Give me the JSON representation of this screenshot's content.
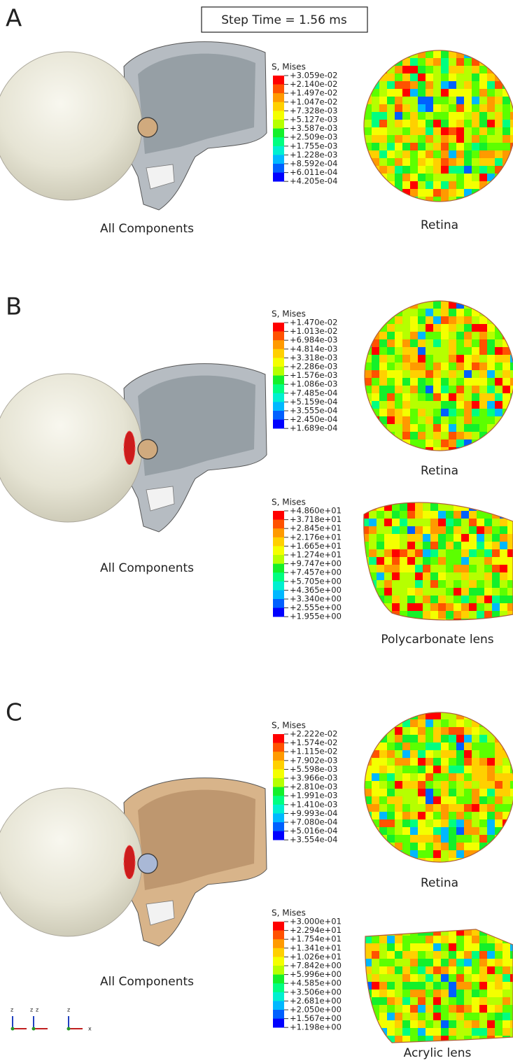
{
  "step_time": "Step Time = 1.56 ms",
  "panels": [
    {
      "label": "A",
      "model_caption": "All Components",
      "legends": [
        {
          "title": "S, Mises",
          "caption": "Retina",
          "values": [
            "+3.059e-02",
            "+2.140e-02",
            "+1.497e-02",
            "+1.047e-02",
            "+7.328e-03",
            "+5.127e-03",
            "+3.587e-03",
            "+2.509e-03",
            "+1.755e-03",
            "+1.228e-03",
            "+8.592e-04",
            "+6.011e-04",
            "+4.205e-04"
          ]
        }
      ]
    },
    {
      "label": "B",
      "model_caption": "All Components",
      "legends": [
        {
          "title": "S, Mises",
          "caption": "Retina",
          "values": [
            "+1.470e-02",
            "+1.013e-02",
            "+6.984e-03",
            "+4.814e-03",
            "+3.318e-03",
            "+2.286e-03",
            "+1.576e-03",
            "+1.086e-03",
            "+7.485e-04",
            "+5.159e-04",
            "+3.555e-04",
            "+2.450e-04",
            "+1.689e-04"
          ]
        },
        {
          "title": "S, Mises",
          "caption": "Polycarbonate lens",
          "values": [
            "+4.860e+01",
            "+3.718e+01",
            "+2.845e+01",
            "+2.176e+01",
            "+1.665e+01",
            "+1.274e+01",
            "+9.747e+00",
            "+7.457e+00",
            "+5.705e+00",
            "+4.365e+00",
            "+3.340e+00",
            "+2.555e+00",
            "+1.955e+00"
          ]
        }
      ]
    },
    {
      "label": "C",
      "model_caption": "All Components",
      "legends": [
        {
          "title": "S, Mises",
          "caption": "Retina",
          "values": [
            "+2.222e-02",
            "+1.574e-02",
            "+1.115e-02",
            "+7.902e-03",
            "+5.598e-03",
            "+3.966e-03",
            "+2.810e-03",
            "+1.991e-03",
            "+1.410e-03",
            "+9.993e-04",
            "+7.080e-04",
            "+5.016e-04",
            "+3.554e-04"
          ]
        },
        {
          "title": "S, Mises",
          "caption": "Acrylic lens",
          "values": [
            "+3.000e+01",
            "+2.294e+01",
            "+1.754e+01",
            "+1.341e+01",
            "+1.026e+01",
            "+7.842e+00",
            "+5.996e+00",
            "+4.585e+00",
            "+3.506e+00",
            "+2.681e+00",
            "+2.050e+00",
            "+1.567e+00",
            "+1.198e+00"
          ]
        }
      ]
    }
  ],
  "triad_labels": [
    "z",
    "z",
    "z",
    "z",
    "x"
  ]
}
